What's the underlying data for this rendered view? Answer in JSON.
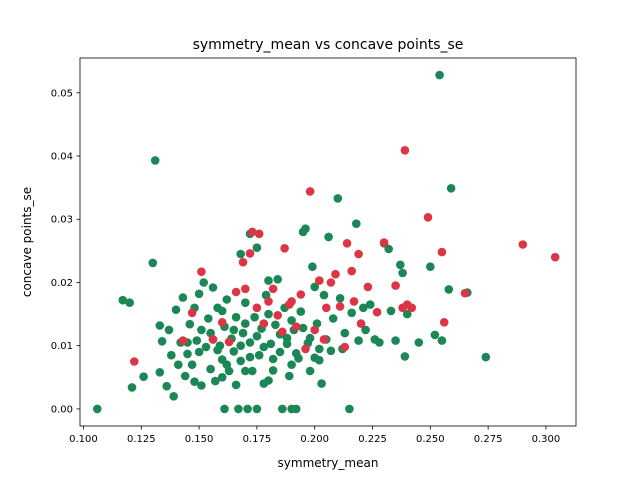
{
  "chart_data": {
    "type": "scatter",
    "title": "symmetry_mean vs concave points_se",
    "xlabel": "symmetry_mean",
    "ylabel": "concave points_se",
    "xlim": [
      0.0985,
      0.313
    ],
    "ylim": [
      -0.0027,
      0.0555
    ],
    "xticks": [
      0.1,
      0.125,
      0.15,
      0.175,
      0.2,
      0.225,
      0.25,
      0.275,
      0.3
    ],
    "xtick_labels": [
      "0.100",
      "0.125",
      "0.150",
      "0.175",
      "0.200",
      "0.225",
      "0.250",
      "0.275",
      "0.300"
    ],
    "yticks": [
      0.0,
      0.01,
      0.02,
      0.03,
      0.04,
      0.05
    ],
    "ytick_labels": [
      "0.00",
      "0.01",
      "0.02",
      "0.03",
      "0.04",
      "0.05"
    ],
    "grid": false,
    "legend": "none",
    "colors": {
      "green": "#1a8754",
      "red": "#dc3545"
    },
    "series": [
      {
        "color": "#1a8754",
        "points": [
          [
            0.106,
            0.0
          ],
          [
            0.131,
            0.0393
          ],
          [
            0.13,
            0.0231
          ],
          [
            0.117,
            0.0172
          ],
          [
            0.12,
            0.0168
          ],
          [
            0.121,
            0.0034
          ],
          [
            0.126,
            0.0051
          ],
          [
            0.133,
            0.0132
          ],
          [
            0.134,
            0.0107
          ],
          [
            0.133,
            0.0058
          ],
          [
            0.136,
            0.0036
          ],
          [
            0.137,
            0.0125
          ],
          [
            0.138,
            0.0085
          ],
          [
            0.139,
            0.002
          ],
          [
            0.14,
            0.0157
          ],
          [
            0.141,
            0.007
          ],
          [
            0.142,
            0.0105
          ],
          [
            0.143,
            0.0176
          ],
          [
            0.144,
            0.0052
          ],
          [
            0.145,
            0.0087
          ],
          [
            0.146,
            0.0134
          ],
          [
            0.147,
            0.007
          ],
          [
            0.148,
            0.016
          ],
          [
            0.148,
            0.0043
          ],
          [
            0.149,
            0.0108
          ],
          [
            0.15,
            0.0182
          ],
          [
            0.151,
            0.0125
          ],
          [
            0.151,
            0.0037
          ],
          [
            0.152,
            0.02
          ],
          [
            0.153,
            0.0098
          ],
          [
            0.154,
            0.0143
          ],
          [
            0.155,
            0.0063
          ],
          [
            0.156,
            0.0192
          ],
          [
            0.156,
            0.011
          ],
          [
            0.157,
            0.0044
          ],
          [
            0.158,
            0.016
          ],
          [
            0.159,
            0.01
          ],
          [
            0.16,
            0.0078
          ],
          [
            0.161,
            0.013
          ],
          [
            0.161,
            0.0
          ],
          [
            0.162,
            0.0173
          ],
          [
            0.163,
            0.006
          ],
          [
            0.164,
            0.0111
          ],
          [
            0.165,
            0.0091
          ],
          [
            0.166,
            0.0038
          ],
          [
            0.166,
            0.0145
          ],
          [
            0.167,
            0.0
          ],
          [
            0.168,
            0.0245
          ],
          [
            0.168,
            0.0076
          ],
          [
            0.169,
            0.012
          ],
          [
            0.17,
            0.0168
          ],
          [
            0.171,
            0.0
          ],
          [
            0.172,
            0.0105
          ],
          [
            0.172,
            0.0277
          ],
          [
            0.173,
            0.006
          ],
          [
            0.174,
            0.0145
          ],
          [
            0.175,
            0.0
          ],
          [
            0.175,
            0.0255
          ],
          [
            0.176,
            0.0085
          ],
          [
            0.177,
            0.0127
          ],
          [
            0.178,
            0.004
          ],
          [
            0.179,
            0.018
          ],
          [
            0.18,
            0.0203
          ],
          [
            0.181,
            0.0103
          ],
          [
            0.182,
            0.0061
          ],
          [
            0.183,
            0.0133
          ],
          [
            0.184,
            0.0205
          ],
          [
            0.185,
            0.009
          ],
          [
            0.186,
            0.0
          ],
          [
            0.187,
            0.016
          ],
          [
            0.188,
            0.0112
          ],
          [
            0.189,
            0.0052
          ],
          [
            0.19,
            0.0
          ],
          [
            0.191,
            0.0125
          ],
          [
            0.192,
            0.0
          ],
          [
            0.193,
            0.008
          ],
          [
            0.194,
            0.0154
          ],
          [
            0.195,
            0.028
          ],
          [
            0.196,
            0.0285
          ],
          [
            0.197,
            0.0104
          ],
          [
            0.198,
            0.006
          ],
          [
            0.199,
            0.0225
          ],
          [
            0.2,
            0.0193
          ],
          [
            0.201,
            0.0135
          ],
          [
            0.202,
            0.0077
          ],
          [
            0.203,
            0.004
          ],
          [
            0.204,
            0.018
          ],
          [
            0.205,
            0.011
          ],
          [
            0.206,
            0.0272
          ],
          [
            0.207,
            0.0092
          ],
          [
            0.208,
            0.0143
          ],
          [
            0.21,
            0.0333
          ],
          [
            0.211,
            0.0175
          ],
          [
            0.212,
            0.0095
          ],
          [
            0.213,
            0.012
          ],
          [
            0.215,
            0.0
          ],
          [
            0.216,
            0.0152
          ],
          [
            0.218,
            0.0293
          ],
          [
            0.219,
            0.0108
          ],
          [
            0.221,
            0.016
          ],
          [
            0.222,
            0.0125
          ],
          [
            0.224,
            0.0165
          ],
          [
            0.226,
            0.011
          ],
          [
            0.228,
            0.0105
          ],
          [
            0.23,
            0.0262
          ],
          [
            0.232,
            0.0253
          ],
          [
            0.233,
            0.0155
          ],
          [
            0.235,
            0.0108
          ],
          [
            0.237,
            0.0228
          ],
          [
            0.238,
            0.0215
          ],
          [
            0.239,
            0.0083
          ],
          [
            0.24,
            0.015
          ],
          [
            0.245,
            0.0105
          ],
          [
            0.25,
            0.0225
          ],
          [
            0.252,
            0.0117
          ],
          [
            0.254,
            0.0528
          ],
          [
            0.258,
            0.0189
          ],
          [
            0.259,
            0.0349
          ],
          [
            0.266,
            0.0184
          ],
          [
            0.274,
            0.0082
          ],
          [
            0.255,
            0.0108
          ],
          [
            0.16,
            0.0155
          ],
          [
            0.17,
            0.0135
          ],
          [
            0.18,
            0.015
          ],
          [
            0.19,
            0.014
          ],
          [
            0.175,
            0.0115
          ],
          [
            0.165,
            0.0125
          ],
          [
            0.185,
            0.0118
          ],
          [
            0.195,
            0.0128
          ],
          [
            0.158,
            0.0093
          ],
          [
            0.168,
            0.01
          ],
          [
            0.178,
            0.0098
          ],
          [
            0.188,
            0.0103
          ],
          [
            0.198,
            0.0112
          ],
          [
            0.162,
            0.007
          ],
          [
            0.172,
            0.0082
          ],
          [
            0.182,
            0.0079
          ],
          [
            0.192,
            0.0088
          ],
          [
            0.202,
            0.0095
          ],
          [
            0.155,
            0.012
          ],
          [
            0.15,
            0.009
          ],
          [
            0.145,
            0.0105
          ],
          [
            0.16,
            0.005
          ],
          [
            0.17,
            0.006
          ],
          [
            0.18,
            0.0045
          ],
          [
            0.19,
            0.007
          ],
          [
            0.2,
            0.0081
          ]
        ]
      },
      {
        "color": "#dc3545",
        "points": [
          [
            0.122,
            0.0075
          ],
          [
            0.143,
            0.0108
          ],
          [
            0.147,
            0.0152
          ],
          [
            0.151,
            0.0217
          ],
          [
            0.156,
            0.011
          ],
          [
            0.16,
            0.0137
          ],
          [
            0.163,
            0.0106
          ],
          [
            0.166,
            0.0185
          ],
          [
            0.169,
            0.0232
          ],
          [
            0.17,
            0.019
          ],
          [
            0.172,
            0.0246
          ],
          [
            0.173,
            0.028
          ],
          [
            0.175,
            0.016
          ],
          [
            0.176,
            0.0277
          ],
          [
            0.178,
            0.0135
          ],
          [
            0.18,
            0.017
          ],
          [
            0.182,
            0.019
          ],
          [
            0.184,
            0.0148
          ],
          [
            0.186,
            0.0122
          ],
          [
            0.187,
            0.0254
          ],
          [
            0.189,
            0.0165
          ],
          [
            0.19,
            0.017
          ],
          [
            0.192,
            0.013
          ],
          [
            0.194,
            0.0181
          ],
          [
            0.196,
            0.0095
          ],
          [
            0.198,
            0.0344
          ],
          [
            0.2,
            0.0125
          ],
          [
            0.202,
            0.0203
          ],
          [
            0.204,
            0.011
          ],
          [
            0.205,
            0.016
          ],
          [
            0.207,
            0.02
          ],
          [
            0.209,
            0.0213
          ],
          [
            0.211,
            0.0162
          ],
          [
            0.213,
            0.0098
          ],
          [
            0.214,
            0.0262
          ],
          [
            0.216,
            0.0218
          ],
          [
            0.217,
            0.017
          ],
          [
            0.219,
            0.0245
          ],
          [
            0.22,
            0.0135
          ],
          [
            0.223,
            0.0193
          ],
          [
            0.227,
            0.0153
          ],
          [
            0.23,
            0.0263
          ],
          [
            0.235,
            0.0195
          ],
          [
            0.238,
            0.016
          ],
          [
            0.239,
            0.0409
          ],
          [
            0.24,
            0.0165
          ],
          [
            0.242,
            0.016
          ],
          [
            0.249,
            0.0303
          ],
          [
            0.255,
            0.0248
          ],
          [
            0.256,
            0.0137
          ],
          [
            0.265,
            0.0183
          ],
          [
            0.29,
            0.026
          ],
          [
            0.304,
            0.024
          ]
        ]
      }
    ]
  }
}
